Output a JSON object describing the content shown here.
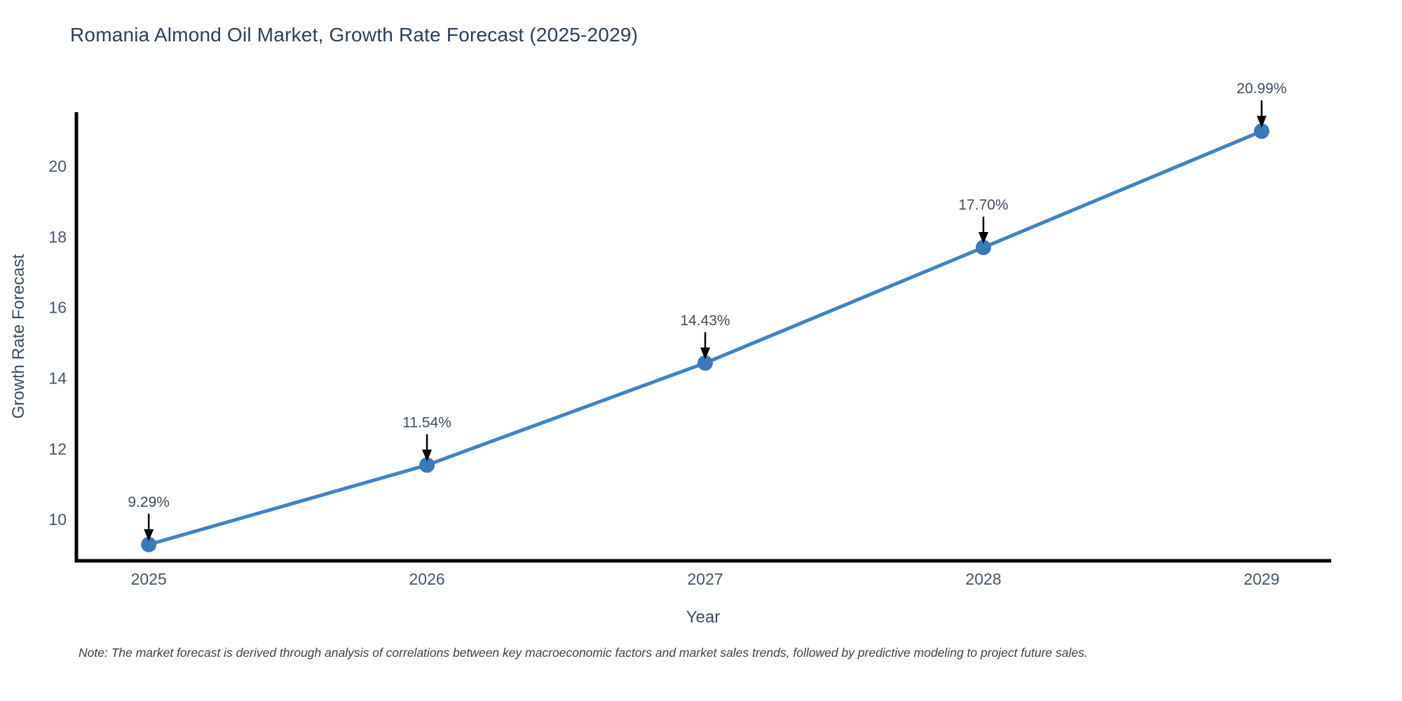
{
  "title": "Romania Almond Oil Market, Growth Rate Forecast (2025-2029)",
  "note": "Note: The market forecast is derived through analysis of correlations between key macroeconomic factors and market sales trends, followed by predictive modeling to project future sales.",
  "chart_data": {
    "type": "line",
    "title": "Romania Almond Oil Market, Growth Rate Forecast (2025-2029)",
    "xlabel": "Year",
    "ylabel": "Growth Rate Forecast",
    "x": [
      2025,
      2026,
      2027,
      2028,
      2029
    ],
    "series": [
      {
        "name": "Growth Rate Forecast",
        "values": [
          9.29,
          11.54,
          14.43,
          17.7,
          20.99
        ]
      }
    ],
    "point_labels": [
      "9.29%",
      "11.54%",
      "14.43%",
      "17.70%",
      "20.99%"
    ],
    "yticks": [
      10,
      12,
      14,
      16,
      18,
      20
    ],
    "xticks": [
      2025,
      2026,
      2027,
      2028,
      2029
    ],
    "xlim": [
      2024.74,
      2029.25
    ],
    "ylim": [
      8.83,
      21.53
    ],
    "grid": false,
    "legend": "none",
    "colors": {
      "line": "#4183c4",
      "marker": "#3b79b8",
      "annotation_arrow": "#000000",
      "axis": "#000000",
      "title_text": "#2d3f55",
      "tick_text": "#47556a"
    }
  }
}
